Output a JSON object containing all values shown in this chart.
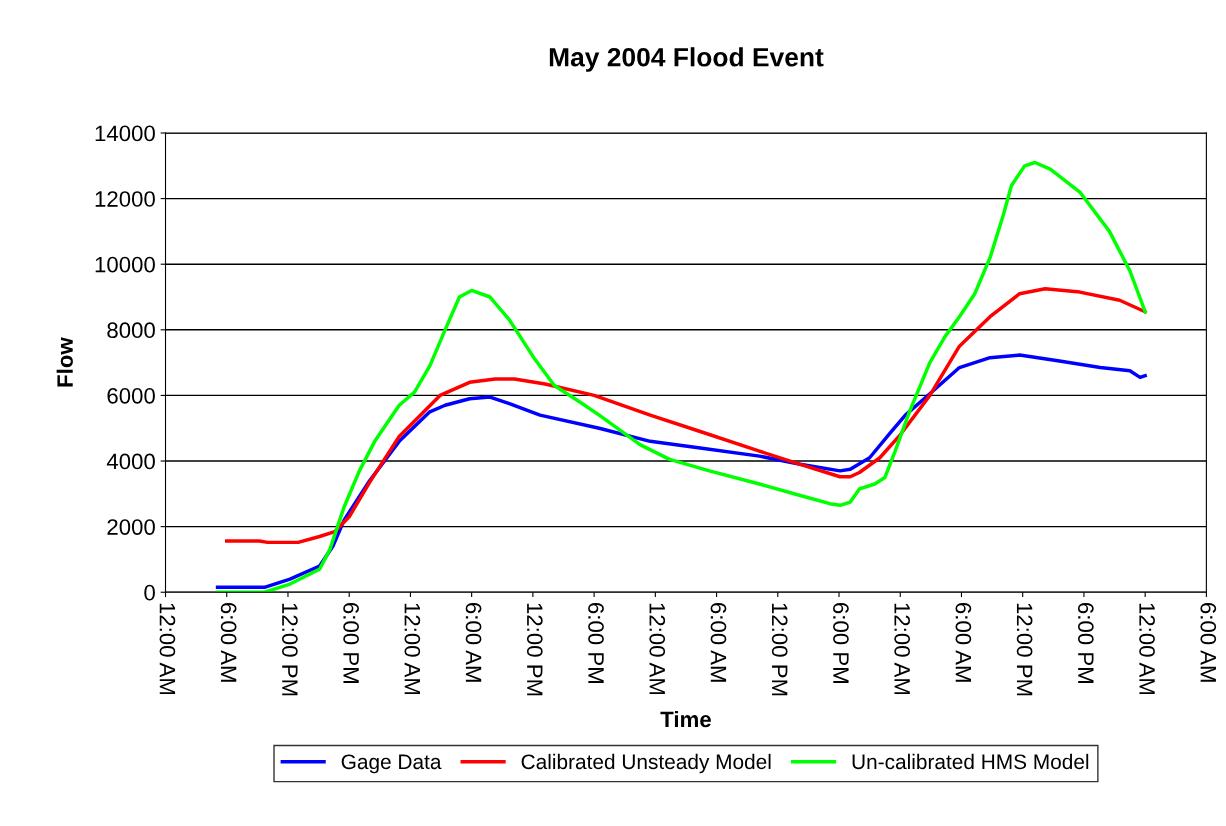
{
  "chart_data": {
    "type": "line",
    "title": "May 2004 Flood Event",
    "xlabel": "Time",
    "ylabel": "Flow",
    "xlim": [
      "2004-05-01T00:00",
      "2004-05-05T06:00"
    ],
    "xticks": [
      {
        "value": "2004-05-01T00:00",
        "label": "12:00 AM"
      },
      {
        "value": "2004-05-01T06:00",
        "label": "6:00 AM"
      },
      {
        "value": "2004-05-01T12:00",
        "label": "12:00 PM"
      },
      {
        "value": "2004-05-01T18:00",
        "label": "6:00 PM"
      },
      {
        "value": "2004-05-02T00:00",
        "label": "12:00 AM"
      },
      {
        "value": "2004-05-02T06:00",
        "label": "6:00 AM"
      },
      {
        "value": "2004-05-02T12:00",
        "label": "12:00 PM"
      },
      {
        "value": "2004-05-02T18:00",
        "label": "6:00 PM"
      },
      {
        "value": "2004-05-03T00:00",
        "label": "12:00 AM"
      },
      {
        "value": "2004-05-03T06:00",
        "label": "6:00 AM"
      },
      {
        "value": "2004-05-03T12:00",
        "label": "12:00 PM"
      },
      {
        "value": "2004-05-03T18:00",
        "label": "6:00 PM"
      },
      {
        "value": "2004-05-04T00:00",
        "label": "12:00 AM"
      },
      {
        "value": "2004-05-04T06:00",
        "label": "6:00 AM"
      },
      {
        "value": "2004-05-04T12:00",
        "label": "12:00 PM"
      },
      {
        "value": "2004-05-04T18:00",
        "label": "6:00 PM"
      },
      {
        "value": "2004-05-05T00:00",
        "label": "12:00 AM"
      },
      {
        "value": "2004-05-05T06:00",
        "label": "6:00 AM"
      }
    ],
    "ylim": [
      0,
      14000
    ],
    "yticks": [
      0,
      2000,
      4000,
      6000,
      8000,
      10000,
      12000,
      14000
    ],
    "grid": "y",
    "legend": "bottom",
    "marker": "none",
    "line_style": "solid",
    "series": [
      {
        "name": "Gage Data",
        "color": "#0000ff",
        "x": [
          "2004-05-01T05:06",
          "2004-05-01T09:42",
          "2004-05-01T12:12",
          "2004-05-01T15:06",
          "2004-05-01T16:24",
          "2004-05-01T17:30",
          "2004-05-01T20:00",
          "2004-05-01T22:54",
          "2004-05-02T01:54",
          "2004-05-02T03:24",
          "2004-05-02T05:48",
          "2004-05-02T07:48",
          "2004-05-02T09:42",
          "2004-05-02T12:42",
          "2004-05-02T18:30",
          "2004-05-02T23:30",
          "2004-05-03T04:24",
          "2004-05-03T10:12",
          "2004-05-03T14:12",
          "2004-05-03T18:06",
          "2004-05-03T19:06",
          "2004-05-03T21:00",
          "2004-05-03T23:00",
          "2004-05-04T00:30",
          "2004-05-04T02:54",
          "2004-05-04T05:48",
          "2004-05-04T08:48",
          "2004-05-04T11:42",
          "2004-05-04T15:36",
          "2004-05-04T19:36",
          "2004-05-04T22:30",
          "2004-05-04T23:30",
          "2004-05-05T00:00"
        ],
        "values": [
          150,
          150,
          400,
          800,
          1400,
          2200,
          3400,
          4600,
          5500,
          5700,
          5900,
          5950,
          5750,
          5400,
          5000,
          4600,
          4400,
          4150,
          3900,
          3700,
          3750,
          4100,
          4850,
          5400,
          6050,
          6850,
          7150,
          7230,
          7050,
          6850,
          6750,
          6550,
          6600
        ]
      },
      {
        "name": "Calibrated Unsteady Model",
        "color": "#ff0000",
        "x": [
          "2004-05-01T06:00",
          "2004-05-01T09:12",
          "2004-05-01T10:00",
          "2004-05-01T13:00",
          "2004-05-01T15:06",
          "2004-05-01T16:36",
          "2004-05-01T18:00",
          "2004-05-01T20:00",
          "2004-05-01T22:54",
          "2004-05-02T02:54",
          "2004-05-02T05:48",
          "2004-05-02T08:18",
          "2004-05-02T10:12",
          "2004-05-02T13:12",
          "2004-05-02T18:00",
          "2004-05-02T23:30",
          "2004-05-03T04:24",
          "2004-05-03T10:12",
          "2004-05-03T14:12",
          "2004-05-03T18:06",
          "2004-05-03T19:06",
          "2004-05-03T20:00",
          "2004-05-03T22:00",
          "2004-05-04T00:00",
          "2004-05-04T02:54",
          "2004-05-04T05:48",
          "2004-05-04T08:48",
          "2004-05-04T11:42",
          "2004-05-04T14:12",
          "2004-05-04T17:36",
          "2004-05-04T21:30",
          "2004-05-05T00:00"
        ],
        "values": [
          1560,
          1560,
          1520,
          1520,
          1700,
          1850,
          2300,
          3350,
          4750,
          6000,
          6400,
          6500,
          6500,
          6350,
          6000,
          5400,
          4900,
          4300,
          3900,
          3520,
          3520,
          3650,
          4100,
          4800,
          6000,
          7500,
          8400,
          9100,
          9250,
          9150,
          8900,
          8550
        ]
      },
      {
        "name": "Un-calibrated HMS Model",
        "color": "#00ff00",
        "x": [
          "2004-05-01T05:06",
          "2004-05-01T09:42",
          "2004-05-01T12:12",
          "2004-05-01T15:06",
          "2004-05-01T16:06",
          "2004-05-01T17:30",
          "2004-05-01T19:00",
          "2004-05-01T20:30",
          "2004-05-01T22:54",
          "2004-05-02T00:24",
          "2004-05-02T01:54",
          "2004-05-02T03:24",
          "2004-05-02T04:48",
          "2004-05-02T06:00",
          "2004-05-02T07:48",
          "2004-05-02T09:42",
          "2004-05-02T12:12",
          "2004-05-02T14:06",
          "2004-05-02T16:36",
          "2004-05-02T18:30",
          "2004-05-02T22:30",
          "2004-05-03T01:24",
          "2004-05-03T05:18",
          "2004-05-03T10:12",
          "2004-05-03T14:12",
          "2004-05-03T17:06",
          "2004-05-03T18:06",
          "2004-05-03T19:06",
          "2004-05-03T20:00",
          "2004-05-03T21:30",
          "2004-05-03T22:30",
          "2004-05-03T23:30",
          "2004-05-04T00:54",
          "2004-05-04T02:54",
          "2004-05-04T04:24",
          "2004-05-04T05:48",
          "2004-05-04T07:18",
          "2004-05-04T08:48",
          "2004-05-04T10:06",
          "2004-05-04T10:54",
          "2004-05-04T12:12",
          "2004-05-04T13:12",
          "2004-05-04T14:42",
          "2004-05-04T17:36",
          "2004-05-04T20:30",
          "2004-05-04T22:30",
          "2004-05-05T00:00"
        ],
        "values": [
          0,
          0,
          250,
          700,
          1300,
          2600,
          3700,
          4600,
          5700,
          6100,
          6900,
          8000,
          9000,
          9200,
          9000,
          8300,
          7100,
          6300,
          5800,
          5400,
          4500,
          4050,
          3700,
          3300,
          2950,
          2700,
          2650,
          2750,
          3150,
          3300,
          3500,
          4300,
          5500,
          7000,
          7800,
          8400,
          9100,
          10200,
          11500,
          12400,
          13000,
          13100,
          12900,
          12200,
          11000,
          9800,
          8550
        ]
      }
    ]
  }
}
